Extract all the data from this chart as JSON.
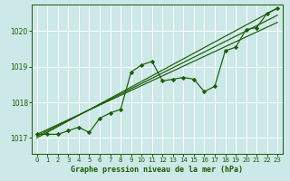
{
  "xlabel": "Graphe pression niveau de la mer (hPa)",
  "bg_color": "#cce8e8",
  "line_color": "#1a5c00",
  "grid_color": "#b8d8d8",
  "ylim": [
    1016.55,
    1020.75
  ],
  "xlim": [
    -0.5,
    23.5
  ],
  "yticks": [
    1017,
    1018,
    1019,
    1020
  ],
  "xticks": [
    0,
    1,
    2,
    3,
    4,
    5,
    6,
    7,
    8,
    9,
    10,
    11,
    12,
    13,
    14,
    15,
    16,
    17,
    18,
    19,
    20,
    21,
    22,
    23
  ],
  "data_x": [
    0,
    1,
    2,
    3,
    4,
    5,
    6,
    7,
    8,
    9,
    10,
    11,
    12,
    13,
    14,
    15,
    16,
    17,
    18,
    19,
    20,
    21,
    22,
    23
  ],
  "data_y": [
    1017.1,
    1017.1,
    1017.1,
    1017.2,
    1017.3,
    1017.15,
    1017.55,
    1017.7,
    1017.8,
    1018.85,
    1019.05,
    1019.15,
    1018.6,
    1018.65,
    1018.7,
    1018.65,
    1018.3,
    1018.45,
    1019.45,
    1019.55,
    1020.05,
    1020.1,
    1020.5,
    1020.65
  ],
  "trend1_x": [
    0,
    23
  ],
  "trend1_y": [
    1017.0,
    1020.65
  ],
  "trend2_x": [
    0,
    23
  ],
  "trend2_y": [
    1017.05,
    1020.45
  ],
  "trend3_x": [
    0,
    23
  ],
  "trend3_y": [
    1017.1,
    1020.25
  ]
}
